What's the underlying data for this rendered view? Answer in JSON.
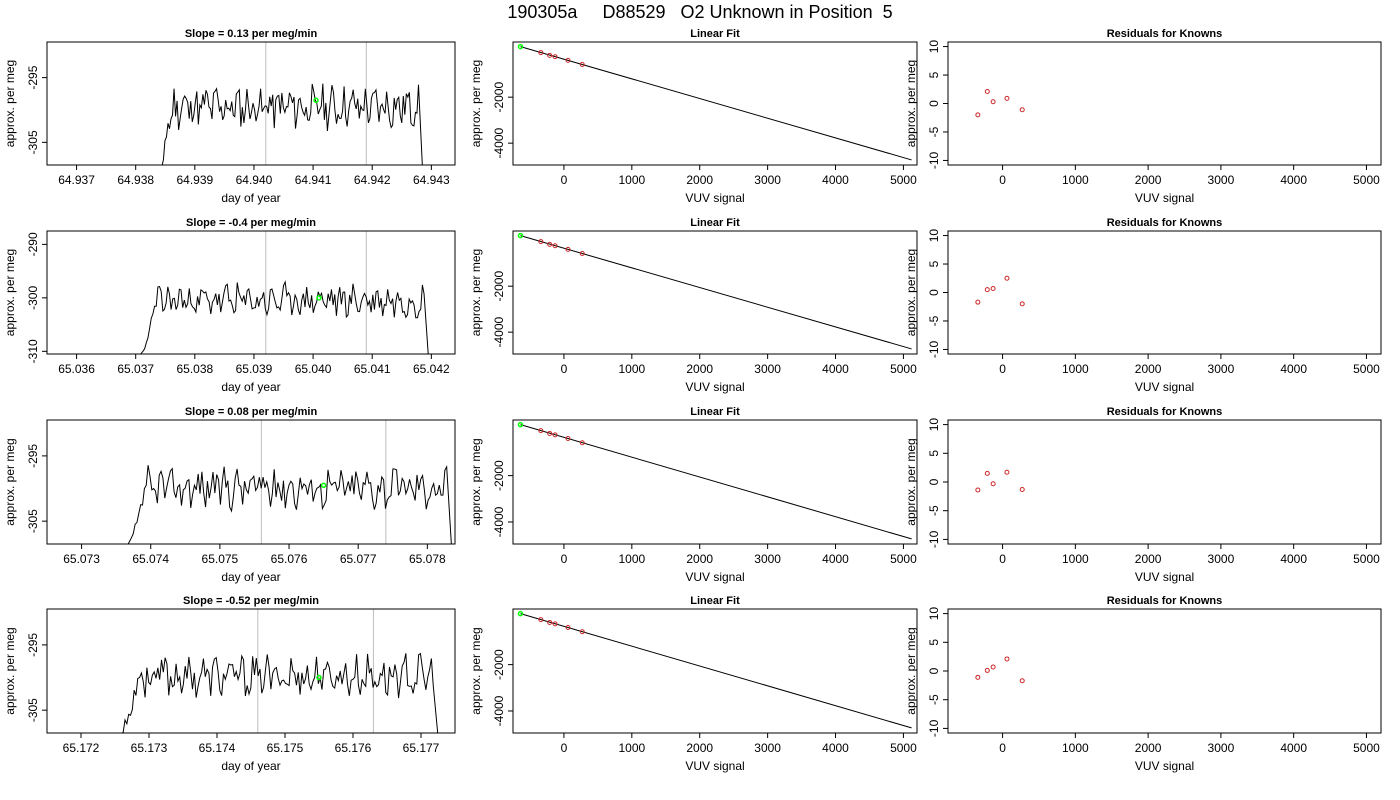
{
  "title": "190305a     D88529   O2 Unknown in Position  5",
  "chart_data": [
    {
      "type": "line",
      "panel": "timeseries",
      "row": 1,
      "title": "Slope =  0.13  per meg/min",
      "xlabel": "day of year",
      "ylabel": "approx. per meg",
      "xlim": [
        64.9365,
        64.9434
      ],
      "ylim": [
        -308.5,
        -289.5
      ],
      "xticks": [
        "64.937",
        "64.938",
        "64.939",
        "64.940",
        "64.941",
        "64.942",
        "64.943"
      ],
      "xtick_values": [
        64.937,
        64.938,
        64.939,
        64.94,
        64.941,
        64.942,
        64.943
      ],
      "yticks": [
        "-305",
        "-295"
      ],
      "ytick_values": [
        -305,
        -295
      ],
      "vlines": [
        64.9402,
        64.9419
      ],
      "point": {
        "x": 64.94105,
        "y": -298.5
      },
      "series": [
        {
          "x_start": 64.93835,
          "x_end": 64.94285,
          "base": -299.5,
          "amp": 2.6,
          "seed": 11,
          "y_min": -309.0,
          "y_max": -292.0
        }
      ]
    },
    {
      "type": "line",
      "panel": "fit",
      "row": 1,
      "title": "Linear Fit",
      "xlabel": "VUV signal",
      "ylabel": "approx. per meg",
      "xlim": [
        -750,
        5200
      ],
      "ylim": [
        -4950,
        400
      ],
      "xticks": [
        "0",
        "1000",
        "2000",
        "3000",
        "4000",
        "5000"
      ],
      "xtick_values": [
        0,
        1000,
        2000,
        3000,
        4000,
        5000
      ],
      "yticks": [
        "-4000",
        "-2000"
      ],
      "ytick_values": [
        -4000,
        -2000
      ],
      "line": [
        [
          -640,
          200
        ],
        [
          5120,
          -4730
        ]
      ],
      "points": [
        [
          -340,
          -60
        ],
        [
          -210,
          -180
        ],
        [
          -130,
          -240
        ],
        [
          60,
          -400
        ],
        [
          270,
          -580
        ]
      ],
      "highlight": [
        -640,
        200
      ]
    },
    {
      "type": "scatter",
      "panel": "residuals",
      "row": 1,
      "title": "Residuals for Knowns",
      "xlabel": "VUV signal",
      "ylabel": "approx. per meg",
      "xlim": [
        -750,
        5200
      ],
      "ylim": [
        -10.8,
        10.8
      ],
      "xticks": [
        "0",
        "1000",
        "2000",
        "3000",
        "4000",
        "5000"
      ],
      "xtick_values": [
        0,
        1000,
        2000,
        3000,
        4000,
        5000
      ],
      "yticks": [
        "-10",
        "-5",
        "0",
        "5",
        "10"
      ],
      "ytick_values": [
        -10,
        -5,
        0,
        5,
        10
      ],
      "points": [
        [
          -340,
          -2.0
        ],
        [
          -210,
          2.1
        ],
        [
          -130,
          0.3
        ],
        [
          60,
          0.9
        ],
        [
          270,
          -1.1
        ]
      ]
    },
    {
      "type": "line",
      "panel": "timeseries",
      "row": 2,
      "title": "Slope =  -0.4  per meg/min",
      "xlabel": "day of year",
      "ylabel": "approx. per meg",
      "xlim": [
        65.0355,
        65.0424
      ],
      "ylim": [
        -310.5,
        -287.5
      ],
      "xticks": [
        "65.036",
        "65.037",
        "65.038",
        "65.039",
        "65.040",
        "65.041",
        "65.042"
      ],
      "xtick_values": [
        65.036,
        65.037,
        65.038,
        65.039,
        65.04,
        65.041,
        65.042
      ],
      "yticks": [
        "-310",
        "-300",
        "-290"
      ],
      "ytick_values": [
        -310,
        -300,
        -290
      ],
      "vlines": [
        65.0392,
        65.0409
      ],
      "point": {
        "x": 65.0401,
        "y": -300.0
      },
      "series": [
        {
          "x_start": 65.03705,
          "x_end": 65.04195,
          "base": -300.5,
          "amp": 2.4,
          "seed": 23,
          "y_min": -311.0,
          "y_max": -294.0
        }
      ]
    },
    {
      "type": "line",
      "panel": "fit",
      "row": 2,
      "title": "Linear Fit",
      "xlabel": "VUV signal",
      "ylabel": "approx. per meg",
      "xlim": [
        -750,
        5200
      ],
      "ylim": [
        -4950,
        400
      ],
      "xticks": [
        "0",
        "1000",
        "2000",
        "3000",
        "4000",
        "5000"
      ],
      "xtick_values": [
        0,
        1000,
        2000,
        3000,
        4000,
        5000
      ],
      "yticks": [
        "-4000",
        "-2000"
      ],
      "ytick_values": [
        -4000,
        -2000
      ],
      "line": [
        [
          -640,
          200
        ],
        [
          5120,
          -4730
        ]
      ],
      "points": [
        [
          -340,
          -60
        ],
        [
          -210,
          -180
        ],
        [
          -130,
          -240
        ],
        [
          60,
          -400
        ],
        [
          270,
          -580
        ]
      ],
      "highlight": [
        -640,
        200
      ]
    },
    {
      "type": "scatter",
      "panel": "residuals",
      "row": 2,
      "title": "Residuals for Knowns",
      "xlabel": "VUV signal",
      "ylabel": "approx. per meg",
      "xlim": [
        -750,
        5200
      ],
      "ylim": [
        -10.8,
        10.8
      ],
      "xticks": [
        "0",
        "1000",
        "2000",
        "3000",
        "4000",
        "5000"
      ],
      "xtick_values": [
        0,
        1000,
        2000,
        3000,
        4000,
        5000
      ],
      "yticks": [
        "-10",
        "-5",
        "0",
        "5",
        "10"
      ],
      "ytick_values": [
        -10,
        -5,
        0,
        5,
        10
      ],
      "points": [
        [
          -340,
          -1.7
        ],
        [
          -210,
          0.5
        ],
        [
          -130,
          0.7
        ],
        [
          60,
          2.5
        ],
        [
          270,
          -2.0
        ]
      ]
    },
    {
      "type": "line",
      "panel": "timeseries",
      "row": 3,
      "title": "Slope =  0.08  per meg/min",
      "xlabel": "day of year",
      "ylabel": "approx. per meg",
      "xlim": [
        65.0725,
        65.0784
      ],
      "ylim": [
        -308.5,
        -289.5
      ],
      "xticks": [
        "65.073",
        "65.074",
        "65.075",
        "65.076",
        "65.077",
        "65.078"
      ],
      "xtick_values": [
        65.073,
        65.074,
        65.075,
        65.076,
        65.077,
        65.078
      ],
      "yticks": [
        "-305",
        "-295"
      ],
      "ytick_values": [
        -305,
        -295
      ],
      "vlines": [
        65.0756,
        65.0774
      ],
      "point": {
        "x": 65.0765,
        "y": -299.5
      },
      "series": [
        {
          "x_start": 65.07365,
          "x_end": 65.07835,
          "base": -299.8,
          "amp": 2.6,
          "seed": 37,
          "y_min": -309.0,
          "y_max": -293.0
        }
      ]
    },
    {
      "type": "line",
      "panel": "fit",
      "row": 3,
      "title": "Linear Fit",
      "xlabel": "VUV signal",
      "ylabel": "approx. per meg",
      "xlim": [
        -750,
        5200
      ],
      "ylim": [
        -4950,
        400
      ],
      "xticks": [
        "0",
        "1000",
        "2000",
        "3000",
        "4000",
        "5000"
      ],
      "xtick_values": [
        0,
        1000,
        2000,
        3000,
        4000,
        5000
      ],
      "yticks": [
        "-4000",
        "-2000"
      ],
      "ytick_values": [
        -4000,
        -2000
      ],
      "line": [
        [
          -640,
          200
        ],
        [
          5120,
          -4730
        ]
      ],
      "points": [
        [
          -340,
          -60
        ],
        [
          -210,
          -180
        ],
        [
          -130,
          -240
        ],
        [
          60,
          -400
        ],
        [
          270,
          -580
        ]
      ],
      "highlight": [
        -640,
        200
      ]
    },
    {
      "type": "scatter",
      "panel": "residuals",
      "row": 3,
      "title": "Residuals for Knowns",
      "xlabel": "VUV signal",
      "ylabel": "approx. per meg",
      "xlim": [
        -750,
        5200
      ],
      "ylim": [
        -10.8,
        10.8
      ],
      "xticks": [
        "0",
        "1000",
        "2000",
        "3000",
        "4000",
        "5000"
      ],
      "xtick_values": [
        0,
        1000,
        2000,
        3000,
        4000,
        5000
      ],
      "yticks": [
        "-10",
        "-5",
        "0",
        "5",
        "10"
      ],
      "ytick_values": [
        -10,
        -5,
        0,
        5,
        10
      ],
      "points": [
        [
          -340,
          -1.4
        ],
        [
          -210,
          1.5
        ],
        [
          -130,
          -0.3
        ],
        [
          60,
          1.7
        ],
        [
          270,
          -1.3
        ]
      ]
    },
    {
      "type": "line",
      "panel": "timeseries",
      "row": 4,
      "title": "Slope =  -0.52  per meg/min",
      "xlabel": "day of year",
      "ylabel": "approx. per meg",
      "xlim": [
        65.1715,
        65.1775
      ],
      "ylim": [
        -308.5,
        -289.5
      ],
      "xticks": [
        "65.172",
        "65.173",
        "65.174",
        "65.175",
        "65.176",
        "65.177"
      ],
      "xtick_values": [
        65.172,
        65.173,
        65.174,
        65.175,
        65.176,
        65.177
      ],
      "yticks": [
        "-305",
        "-295"
      ],
      "ytick_values": [
        -305,
        -295
      ],
      "vlines": [
        65.1746,
        65.1763
      ],
      "point": {
        "x": 65.1755,
        "y": -300.0
      },
      "series": [
        {
          "x_start": 65.17255,
          "x_end": 65.17725,
          "base": -299.8,
          "amp": 2.5,
          "seed": 53,
          "y_min": -309.0,
          "y_max": -293.0
        }
      ]
    },
    {
      "type": "line",
      "panel": "fit",
      "row": 4,
      "title": "Linear Fit",
      "xlabel": "VUV signal",
      "ylabel": "approx. per meg",
      "xlim": [
        -750,
        5200
      ],
      "ylim": [
        -4950,
        400
      ],
      "xticks": [
        "0",
        "1000",
        "2000",
        "3000",
        "4000",
        "5000"
      ],
      "xtick_values": [
        0,
        1000,
        2000,
        3000,
        4000,
        5000
      ],
      "yticks": [
        "-4000",
        "-2000"
      ],
      "ytick_values": [
        -4000,
        -2000
      ],
      "line": [
        [
          -640,
          200
        ],
        [
          5120,
          -4730
        ]
      ],
      "points": [
        [
          -340,
          -60
        ],
        [
          -210,
          -180
        ],
        [
          -130,
          -240
        ],
        [
          60,
          -400
        ],
        [
          270,
          -580
        ]
      ],
      "highlight": [
        -640,
        200
      ]
    },
    {
      "type": "scatter",
      "panel": "residuals",
      "row": 4,
      "title": "Residuals for Knowns",
      "xlabel": "VUV signal",
      "ylabel": "approx. per meg",
      "xlim": [
        -750,
        5200
      ],
      "ylim": [
        -10.8,
        10.8
      ],
      "xticks": [
        "0",
        "1000",
        "2000",
        "3000",
        "4000",
        "5000"
      ],
      "xtick_values": [
        0,
        1000,
        2000,
        3000,
        4000,
        5000
      ],
      "yticks": [
        "-10",
        "-5",
        "0",
        "5",
        "10"
      ],
      "ytick_values": [
        -10,
        -5,
        0,
        5,
        10
      ],
      "points": [
        [
          -340,
          -1.1
        ],
        [
          -210,
          0.1
        ],
        [
          -130,
          0.7
        ],
        [
          60,
          2.1
        ],
        [
          270,
          -1.7
        ]
      ]
    }
  ],
  "colors": {
    "line": "#000000",
    "vline": "#bebebe",
    "highlight": "#00ff00",
    "residual": "#cd2626",
    "axis": "#000000"
  }
}
